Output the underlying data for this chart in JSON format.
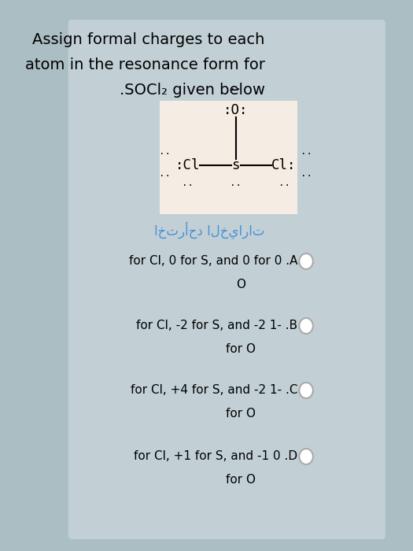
{
  "bg_color": "#abbec4",
  "card_color": "#c2d0d5",
  "molecule_box_color": "#f5ede4",
  "title_lines": [
    "Assign formal charges to each",
    "atom in the resonance form for",
    ".SOCl₂ given below"
  ],
  "arabic_text": "اخترأحد الخيارات",
  "options": [
    {
      "line1": "for Cl, 0 for S, and 0 for 0 .A",
      "line2": "O"
    },
    {
      "line1": "for Cl, -2 for S, and -2 1- .B",
      "line2": "for O"
    },
    {
      "line1": "for Cl, +4 for S, and -2 1- .C",
      "line2": "for O"
    },
    {
      "line1": "for Cl, +1 for S, and -1 0 .D",
      "line2": "for O"
    }
  ]
}
